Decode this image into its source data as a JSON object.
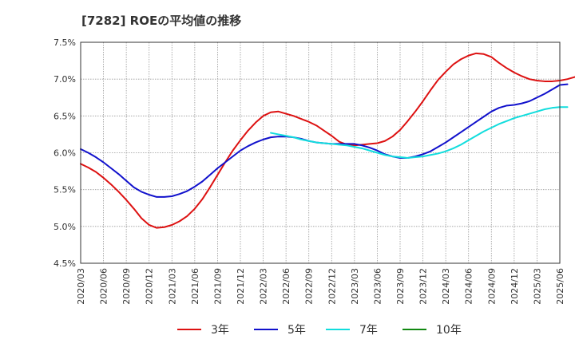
{
  "chart_data": {
    "type": "line",
    "title": "[7282]  ROEの平均値の推移",
    "xlabel": "",
    "ylabel": "",
    "ylim": [
      4.5,
      7.5
    ],
    "y_ticks": [
      "7.5%",
      "7.0%",
      "6.5%",
      "6.0%",
      "5.5%",
      "5.0%",
      "4.5%"
    ],
    "x_ticks": [
      "2020/03",
      "2020/06",
      "2020/09",
      "2020/12",
      "2021/03",
      "2021/06",
      "2021/09",
      "2021/12",
      "2022/03",
      "2022/06",
      "2022/09",
      "2022/12",
      "2023/03",
      "2023/06",
      "2023/09",
      "2023/12",
      "2024/03",
      "2024/06",
      "2024/09",
      "2024/12",
      "2025/03",
      "2025/06"
    ],
    "grid": true,
    "legend_position": "bottom",
    "series": [
      {
        "name": "3年",
        "color": "#dd1111",
        "points": [
          [
            "2020/03",
            5.85
          ],
          [
            "2020/04",
            5.8
          ],
          [
            "2020/05",
            5.74
          ],
          [
            "2020/06",
            5.66
          ],
          [
            "2020/07",
            5.57
          ],
          [
            "2020/08",
            5.47
          ],
          [
            "2020/09",
            5.36
          ],
          [
            "2020/10",
            5.24
          ],
          [
            "2020/11",
            5.11
          ],
          [
            "2020/12",
            5.02
          ],
          [
            "2021/01",
            4.98
          ],
          [
            "2021/02",
            4.99
          ],
          [
            "2021/03",
            5.02
          ],
          [
            "2021/04",
            5.07
          ],
          [
            "2021/05",
            5.14
          ],
          [
            "2021/06",
            5.24
          ],
          [
            "2021/07",
            5.37
          ],
          [
            "2021/08",
            5.53
          ],
          [
            "2021/09",
            5.7
          ],
          [
            "2021/10",
            5.87
          ],
          [
            "2021/11",
            6.03
          ],
          [
            "2021/12",
            6.17
          ],
          [
            "2022/01",
            6.3
          ],
          [
            "2022/02",
            6.41
          ],
          [
            "2022/03",
            6.5
          ],
          [
            "2022/04",
            6.55
          ],
          [
            "2022/05",
            6.56
          ],
          [
            "2022/06",
            6.53
          ],
          [
            "2022/07",
            6.5
          ],
          [
            "2022/08",
            6.46
          ],
          [
            "2022/09",
            6.42
          ],
          [
            "2022/10",
            6.37
          ],
          [
            "2022/11",
            6.3
          ],
          [
            "2022/12",
            6.23
          ],
          [
            "2023/01",
            6.15
          ],
          [
            "2023/02",
            6.11
          ],
          [
            "2023/03",
            6.1
          ],
          [
            "2023/04",
            6.11
          ],
          [
            "2023/05",
            6.12
          ],
          [
            "2023/06",
            6.13
          ],
          [
            "2023/07",
            6.16
          ],
          [
            "2023/08",
            6.22
          ],
          [
            "2023/09",
            6.31
          ],
          [
            "2023/10",
            6.43
          ],
          [
            "2023/11",
            6.56
          ],
          [
            "2023/12",
            6.7
          ],
          [
            "2024/01",
            6.85
          ],
          [
            "2024/02",
            6.99
          ],
          [
            "2024/03",
            7.1
          ],
          [
            "2024/04",
            7.2
          ],
          [
            "2024/05",
            7.27
          ],
          [
            "2024/06",
            7.32
          ],
          [
            "2024/07",
            7.35
          ],
          [
            "2024/08",
            7.34
          ],
          [
            "2024/09",
            7.3
          ],
          [
            "2024/10",
            7.22
          ],
          [
            "2024/11",
            7.15
          ],
          [
            "2024/12",
            7.09
          ],
          [
            "2025/01",
            7.04
          ],
          [
            "2025/02",
            7.0
          ],
          [
            "2025/03",
            6.98
          ],
          [
            "2025/04",
            6.97
          ],
          [
            "2025/05",
            6.97
          ],
          [
            "2025/06",
            6.98
          ],
          [
            "2025/07",
            7.0
          ],
          [
            "2025/08",
            7.03
          ]
        ]
      },
      {
        "name": "5年",
        "color": "#1111cc",
        "points": [
          [
            "2020/03",
            6.05
          ],
          [
            "2020/04",
            6.0
          ],
          [
            "2020/05",
            5.94
          ],
          [
            "2020/06",
            5.87
          ],
          [
            "2020/07",
            5.79
          ],
          [
            "2020/08",
            5.71
          ],
          [
            "2020/09",
            5.62
          ],
          [
            "2020/10",
            5.53
          ],
          [
            "2020/11",
            5.47
          ],
          [
            "2020/12",
            5.43
          ],
          [
            "2021/01",
            5.4
          ],
          [
            "2021/02",
            5.4
          ],
          [
            "2021/03",
            5.41
          ],
          [
            "2021/04",
            5.44
          ],
          [
            "2021/05",
            5.48
          ],
          [
            "2021/06",
            5.54
          ],
          [
            "2021/07",
            5.61
          ],
          [
            "2021/08",
            5.7
          ],
          [
            "2021/09",
            5.79
          ],
          [
            "2021/10",
            5.87
          ],
          [
            "2021/11",
            5.95
          ],
          [
            "2021/12",
            6.03
          ],
          [
            "2022/01",
            6.09
          ],
          [
            "2022/02",
            6.14
          ],
          [
            "2022/03",
            6.18
          ],
          [
            "2022/04",
            6.21
          ],
          [
            "2022/05",
            6.22
          ],
          [
            "2022/06",
            6.22
          ],
          [
            "2022/07",
            6.21
          ],
          [
            "2022/08",
            6.19
          ],
          [
            "2022/09",
            6.16
          ],
          [
            "2022/10",
            6.14
          ],
          [
            "2022/11",
            6.13
          ],
          [
            "2022/12",
            6.12
          ],
          [
            "2023/01",
            6.12
          ],
          [
            "2023/02",
            6.12
          ],
          [
            "2023/03",
            6.12
          ],
          [
            "2023/04",
            6.1
          ],
          [
            "2023/05",
            6.07
          ],
          [
            "2023/06",
            6.03
          ],
          [
            "2023/07",
            5.98
          ],
          [
            "2023/08",
            5.95
          ],
          [
            "2023/09",
            5.93
          ],
          [
            "2023/10",
            5.93
          ],
          [
            "2023/11",
            5.95
          ],
          [
            "2023/12",
            5.98
          ],
          [
            "2024/01",
            6.02
          ],
          [
            "2024/02",
            6.08
          ],
          [
            "2024/03",
            6.14
          ],
          [
            "2024/04",
            6.21
          ],
          [
            "2024/05",
            6.28
          ],
          [
            "2024/06",
            6.35
          ],
          [
            "2024/07",
            6.42
          ],
          [
            "2024/08",
            6.49
          ],
          [
            "2024/09",
            6.56
          ],
          [
            "2024/10",
            6.61
          ],
          [
            "2024/11",
            6.64
          ],
          [
            "2024/12",
            6.65
          ],
          [
            "2025/01",
            6.67
          ],
          [
            "2025/02",
            6.7
          ],
          [
            "2025/03",
            6.75
          ],
          [
            "2025/04",
            6.8
          ],
          [
            "2025/05",
            6.86
          ],
          [
            "2025/06",
            6.92
          ],
          [
            "2025/07",
            6.93
          ]
        ]
      },
      {
        "name": "7年",
        "color": "#11dddd",
        "points": [
          [
            "2022/04",
            6.27
          ],
          [
            "2022/05",
            6.25
          ],
          [
            "2022/06",
            6.23
          ],
          [
            "2022/07",
            6.21
          ],
          [
            "2022/08",
            6.18
          ],
          [
            "2022/09",
            6.16
          ],
          [
            "2022/10",
            6.14
          ],
          [
            "2022/11",
            6.13
          ],
          [
            "2022/12",
            6.12
          ],
          [
            "2023/01",
            6.11
          ],
          [
            "2023/02",
            6.1
          ],
          [
            "2023/03",
            6.08
          ],
          [
            "2023/04",
            6.06
          ],
          [
            "2023/05",
            6.03
          ],
          [
            "2023/06",
            6.0
          ],
          [
            "2023/07",
            5.97
          ],
          [
            "2023/08",
            5.95
          ],
          [
            "2023/09",
            5.94
          ],
          [
            "2023/10",
            5.93
          ],
          [
            "2023/11",
            5.94
          ],
          [
            "2023/12",
            5.95
          ],
          [
            "2024/01",
            5.97
          ],
          [
            "2024/02",
            5.99
          ],
          [
            "2024/03",
            6.02
          ],
          [
            "2024/04",
            6.06
          ],
          [
            "2024/05",
            6.11
          ],
          [
            "2024/06",
            6.17
          ],
          [
            "2024/07",
            6.23
          ],
          [
            "2024/08",
            6.29
          ],
          [
            "2024/09",
            6.34
          ],
          [
            "2024/10",
            6.39
          ],
          [
            "2024/11",
            6.43
          ],
          [
            "2024/12",
            6.47
          ],
          [
            "2025/01",
            6.5
          ],
          [
            "2025/02",
            6.53
          ],
          [
            "2025/03",
            6.56
          ],
          [
            "2025/04",
            6.59
          ],
          [
            "2025/05",
            6.61
          ],
          [
            "2025/06",
            6.62
          ],
          [
            "2025/07",
            6.62
          ]
        ]
      },
      {
        "name": "10年",
        "color": "#118811",
        "points": []
      }
    ]
  }
}
